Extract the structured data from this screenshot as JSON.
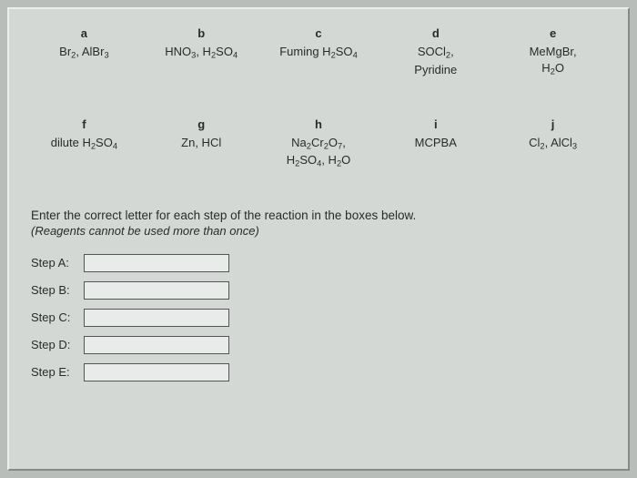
{
  "reagents": {
    "row1": [
      {
        "letter": "a",
        "formula": "Br<sub>2</sub>, AlBr<sub>3</sub>"
      },
      {
        "letter": "b",
        "formula": "HNO<sub>3</sub>, H<sub>2</sub>SO<sub>4</sub>"
      },
      {
        "letter": "c",
        "formula": "Fuming H<sub>2</sub>SO<sub>4</sub>"
      },
      {
        "letter": "d",
        "formula": "SOCl<sub>2</sub>,<br>Pyridine"
      },
      {
        "letter": "e",
        "formula": "MeMgBr,<br>H<sub>2</sub>O"
      }
    ],
    "row2": [
      {
        "letter": "f",
        "formula": "dilute H<sub>2</sub>SO<sub>4</sub>"
      },
      {
        "letter": "g",
        "formula": "Zn, HCl"
      },
      {
        "letter": "h",
        "formula": "Na<sub>2</sub>Cr<sub>2</sub>O<sub>7</sub>,<br>H<sub>2</sub>SO<sub>4</sub>, H<sub>2</sub>O"
      },
      {
        "letter": "i",
        "formula": "MCPBA"
      },
      {
        "letter": "j",
        "formula": "Cl<sub>2</sub>, AlCl<sub>3</sub>"
      }
    ]
  },
  "question": {
    "line1": "Enter the correct letter for each step of the reaction in the boxes below.",
    "line2": "(Reagents cannot be used more than once)"
  },
  "steps": [
    {
      "label": "Step A:",
      "value": ""
    },
    {
      "label": "Step B:",
      "value": ""
    },
    {
      "label": "Step C:",
      "value": ""
    },
    {
      "label": "Step D:",
      "value": ""
    },
    {
      "label": "Step E:",
      "value": ""
    }
  ],
  "colors": {
    "outer_bg": "#b8bdb9",
    "panel_bg": "#d4d8d5",
    "text": "#2a2a2a",
    "input_border": "#555555",
    "input_bg": "#e8ebe9"
  }
}
